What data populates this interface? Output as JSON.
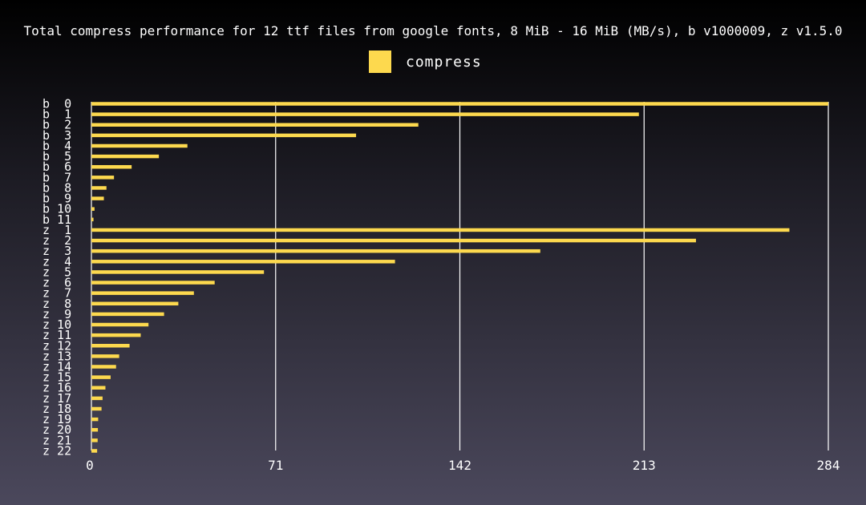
{
  "chart_data": {
    "type": "bar",
    "orientation": "horizontal",
    "title": "Total compress performance for 12 ttf files from google fonts, 8 MiB - 16 MiB (MB/s), b v1000009, z v1.5.0",
    "xlabel": "",
    "ylabel": "",
    "xlim": [
      0,
      284
    ],
    "xticks": [
      "0",
      "71",
      "142",
      "213",
      "284"
    ],
    "grid": true,
    "legend": {
      "position": "top-center"
    },
    "categories": [
      "b  0",
      "b  1",
      "b  2",
      "b  3",
      "b  4",
      "b  5",
      "b  6",
      "b  7",
      "b  8",
      "b  9",
      "b 10",
      "b 11",
      "z  1",
      "z  2",
      "z  3",
      "z  4",
      "z  5",
      "z  6",
      "z  7",
      "z  8",
      "z  9",
      "z 10",
      "z 11",
      "z 12",
      "z 13",
      "z 14",
      "z 15",
      "z 16",
      "z 17",
      "z 18",
      "z 19",
      "z 20",
      "z 21",
      "z 22"
    ],
    "series": [
      {
        "name": "compress",
        "color": "#fdd94e",
        "values": [
          284,
          211,
          126,
          102,
          37,
          26,
          15.5,
          8.7,
          5.8,
          4.8,
          1.2,
          0.8,
          269,
          233,
          173,
          117,
          66.5,
          47.5,
          39.5,
          33.5,
          28,
          22,
          19,
          14.7,
          10.7,
          9.5,
          7.4,
          5.4,
          4.3,
          3.9,
          2.6,
          2.5,
          2.4,
          2.2
        ]
      }
    ]
  },
  "colors": {
    "bar": "#fdd94e",
    "grid": "#ffffff",
    "text": "#ffffff"
  }
}
